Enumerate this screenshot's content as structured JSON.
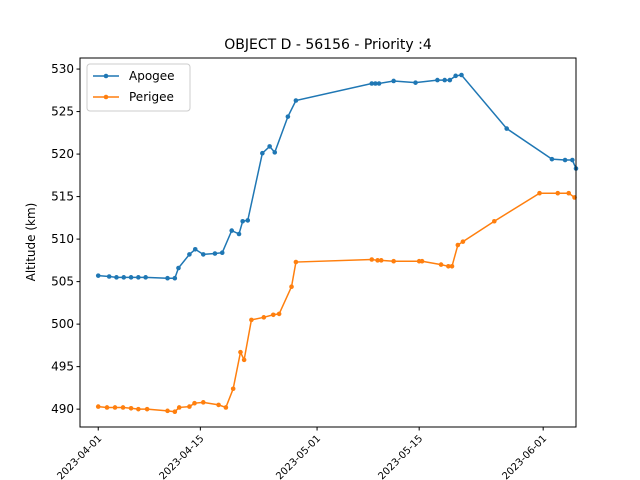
{
  "chart_data": {
    "type": "line",
    "title": "OBJECT D - 56156 - Priority :4",
    "xlabel": "",
    "ylabel": "Altitude (km)",
    "xlim": [
      -2.5,
      65.5
    ],
    "ylim": [
      487.9,
      531.3
    ],
    "yticks": [
      490,
      495,
      500,
      505,
      510,
      515,
      520,
      525,
      530
    ],
    "xticks": [
      {
        "day": 0,
        "label": "2023-04-01"
      },
      {
        "day": 14,
        "label": "2023-04-15"
      },
      {
        "day": 30,
        "label": "2023-05-01"
      },
      {
        "day": 44,
        "label": "2023-05-15"
      },
      {
        "day": 61,
        "label": "2023-06-01"
      }
    ],
    "legend_position": "top-left",
    "series": [
      {
        "name": "Apogee",
        "color": "#1f77b4",
        "x": [
          0,
          1.5,
          2.5,
          3.5,
          4.5,
          5.5,
          6.5,
          9.5,
          10.5,
          11,
          12.5,
          13.3,
          14.4,
          16,
          17,
          18.3,
          19.3,
          19.8,
          20.5,
          22.5,
          23.5,
          24.2,
          26,
          27.1,
          37.5,
          38,
          38.5,
          40.5,
          43.5,
          46.5,
          47.5,
          48.2,
          49,
          49.8,
          56,
          62.2,
          64,
          65,
          65.5
        ],
        "y": [
          505.7,
          505.6,
          505.5,
          505.5,
          505.5,
          505.5,
          505.5,
          505.4,
          505.4,
          506.6,
          508.2,
          508.8,
          508.2,
          508.3,
          508.4,
          511.0,
          510.6,
          512.1,
          512.2,
          520.1,
          520.9,
          520.2,
          524.4,
          526.3,
          528.3,
          528.3,
          528.3,
          528.6,
          528.4,
          528.7,
          528.7,
          528.7,
          529.2,
          529.3,
          523.0,
          519.4,
          519.3,
          519.3,
          518.3
        ]
      },
      {
        "name": "Perigee",
        "color": "#ff7f0e",
        "x": [
          0,
          1.2,
          2.3,
          3.4,
          4.5,
          5.5,
          6.7,
          9.5,
          10.5,
          11.1,
          12.5,
          13.2,
          14.4,
          16.5,
          17.5,
          18.5,
          19.5,
          20,
          21,
          22.7,
          24,
          24.8,
          26.5,
          27.1,
          37.5,
          38.3,
          38.8,
          40.5,
          44,
          44.4,
          47,
          48,
          48.5,
          49.3,
          50,
          54.3,
          60.5,
          63,
          64.5,
          65.3
        ],
        "y": [
          490.3,
          490.2,
          490.2,
          490.2,
          490.1,
          490.0,
          490.0,
          489.8,
          489.7,
          490.2,
          490.3,
          490.7,
          490.8,
          490.5,
          490.2,
          492.4,
          496.7,
          495.8,
          500.5,
          500.8,
          501.1,
          501.2,
          504.4,
          507.3,
          507.6,
          507.5,
          507.5,
          507.4,
          507.4,
          507.4,
          507.0,
          506.8,
          506.8,
          509.3,
          509.7,
          512.1,
          515.4,
          515.4,
          515.4,
          514.9
        ]
      }
    ]
  }
}
